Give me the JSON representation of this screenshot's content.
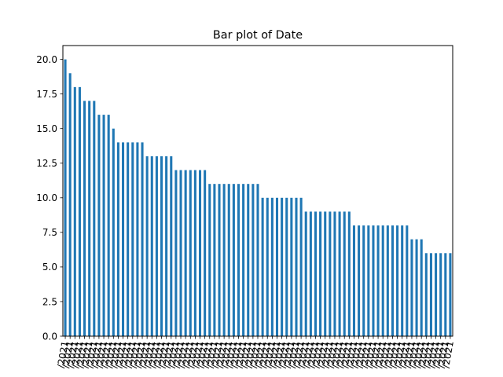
{
  "chart_data": {
    "type": "bar",
    "title": "Bar plot of Date",
    "xlabel": "",
    "ylabel": "",
    "ylim": [
      0,
      21
    ],
    "yticks": [
      "0.0",
      "2.5",
      "5.0",
      "7.5",
      "10.0",
      "12.5",
      "15.0",
      "17.5",
      "20.0"
    ],
    "bar_color": "#1f77b4",
    "grid": false,
    "x_tick_label": "/2021",
    "values": [
      20,
      19,
      18,
      18,
      17,
      17,
      17,
      16,
      16,
      16,
      15,
      14,
      14,
      14,
      14,
      14,
      14,
      13,
      13,
      13,
      13,
      13,
      13,
      12,
      12,
      12,
      12,
      12,
      12,
      12,
      11,
      11,
      11,
      11,
      11,
      11,
      11,
      11,
      11,
      11,
      11,
      10,
      10,
      10,
      10,
      10,
      10,
      10,
      10,
      10,
      9,
      9,
      9,
      9,
      9,
      9,
      9,
      9,
      9,
      9,
      8,
      8,
      8,
      8,
      8,
      8,
      8,
      8,
      8,
      8,
      8,
      8,
      7,
      7,
      7,
      6,
      6,
      6,
      6,
      6,
      6
    ]
  }
}
